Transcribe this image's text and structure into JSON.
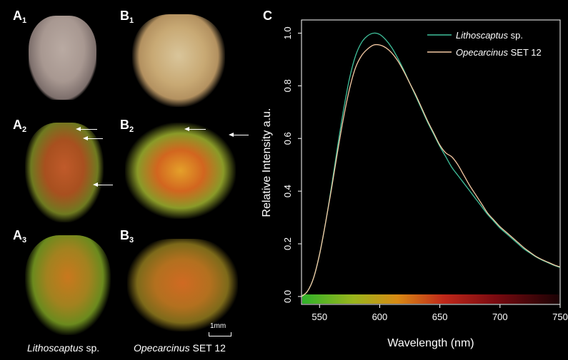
{
  "panels": {
    "a1": {
      "letter": "A",
      "sub": "1"
    },
    "b1": {
      "letter": "B",
      "sub": "1"
    },
    "a2": {
      "letter": "A",
      "sub": "2"
    },
    "b2": {
      "letter": "B",
      "sub": "2"
    },
    "a3": {
      "letter": "A",
      "sub": "3"
    },
    "b3": {
      "letter": "B",
      "sub": "3"
    },
    "c": {
      "letter": "C"
    }
  },
  "captions": {
    "left_italic": "Lithoscaptus",
    "left_rest": " sp.",
    "right_italic": "Opecarcinus",
    "right_rest": " SET 12"
  },
  "scale_bar": "1mm",
  "colors": {
    "lithoscaptus": "#3fbf9a",
    "opecarcinus": "#f4c9a3"
  },
  "chart_data": {
    "type": "line",
    "xlabel": "Wavelength (nm)",
    "ylabel": "Relative Intensity a.u.",
    "xlim": [
      535,
      750
    ],
    "ylim": [
      -0.03,
      1.05
    ],
    "xticks": [
      550,
      600,
      650,
      700,
      750
    ],
    "yticks": [
      0.0,
      0.2,
      0.4,
      0.6,
      0.8,
      1.0
    ],
    "ytick_labels": [
      "0.0",
      "0.2",
      "0.4",
      "0.6",
      "0.8",
      "1.0"
    ],
    "legend_position": "top-right",
    "series": [
      {
        "name": "Lithoscaptus sp.",
        "name_italic": "Lithoscaptus",
        "name_rest": " sp.",
        "x": [
          535,
          540,
          545,
          550,
          555,
          560,
          565,
          570,
          575,
          580,
          585,
          590,
          595,
          600,
          605,
          610,
          615,
          620,
          625,
          630,
          635,
          640,
          645,
          650,
          655,
          660,
          665,
          670,
          675,
          680,
          685,
          690,
          695,
          700,
          705,
          710,
          715,
          720,
          725,
          730,
          735,
          740,
          745,
          750
        ],
        "y": [
          0.0,
          0.02,
          0.07,
          0.16,
          0.28,
          0.42,
          0.57,
          0.71,
          0.83,
          0.915,
          0.965,
          0.99,
          1.0,
          0.995,
          0.975,
          0.945,
          0.905,
          0.86,
          0.81,
          0.76,
          0.71,
          0.66,
          0.615,
          0.57,
          0.53,
          0.49,
          0.46,
          0.43,
          0.4,
          0.37,
          0.34,
          0.31,
          0.285,
          0.26,
          0.24,
          0.22,
          0.2,
          0.18,
          0.165,
          0.15,
          0.138,
          0.128,
          0.118,
          0.11
        ]
      },
      {
        "name": "Opecarcinus SET 12",
        "name_italic": "Opecarcinus",
        "name_rest": " SET 12",
        "x": [
          535,
          540,
          545,
          550,
          555,
          560,
          565,
          570,
          575,
          580,
          585,
          590,
          595,
          600,
          605,
          610,
          615,
          620,
          625,
          630,
          635,
          640,
          645,
          650,
          655,
          660,
          665,
          670,
          675,
          680,
          685,
          690,
          695,
          700,
          705,
          710,
          715,
          720,
          725,
          730,
          735,
          740,
          745,
          750
        ],
        "y": [
          0.0,
          0.02,
          0.07,
          0.16,
          0.28,
          0.41,
          0.55,
          0.68,
          0.79,
          0.87,
          0.915,
          0.94,
          0.955,
          0.955,
          0.945,
          0.925,
          0.895,
          0.855,
          0.81,
          0.765,
          0.715,
          0.665,
          0.62,
          0.575,
          0.545,
          0.53,
          0.5,
          0.46,
          0.42,
          0.385,
          0.35,
          0.315,
          0.29,
          0.265,
          0.245,
          0.225,
          0.205,
          0.185,
          0.168,
          0.152,
          0.14,
          0.13,
          0.12,
          0.112
        ]
      }
    ]
  }
}
